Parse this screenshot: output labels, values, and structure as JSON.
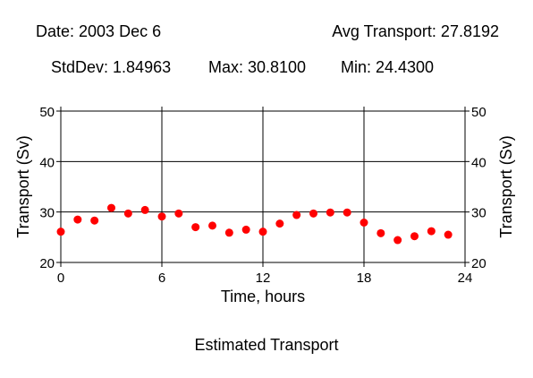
{
  "header": {
    "date": "Date: 2003 Dec 6",
    "avg": "Avg Transport: 27.8192",
    "stddev": "StdDev: 1.84963",
    "max": "Max: 30.8100",
    "min": "Min: 24.4300"
  },
  "caption": "Estimated Transport",
  "chart_data": {
    "type": "scatter",
    "xlabel": "Time, hours",
    "ylabel": "Transport (Sv)",
    "y2label": "Transport (Sv)",
    "xlim": [
      0,
      24
    ],
    "ylim": [
      20,
      50
    ],
    "xticks": [
      0,
      6,
      12,
      18,
      24
    ],
    "yticks": [
      20,
      30,
      40,
      50
    ],
    "grid": true,
    "marker_color": "#ff0000",
    "series": [
      {
        "x": [
          0,
          1,
          2,
          3,
          4,
          5,
          6,
          7,
          8,
          9,
          10,
          11,
          12,
          13,
          14,
          15,
          16,
          17,
          18,
          19,
          20,
          21,
          22,
          23
        ],
        "y": [
          26.1,
          28.5,
          28.3,
          30.81,
          29.7,
          30.4,
          29.1,
          29.7,
          27.0,
          27.3,
          25.9,
          26.5,
          26.1,
          27.7,
          29.4,
          29.7,
          29.9,
          29.9,
          27.9,
          25.8,
          24.43,
          25.2,
          26.2,
          25.5
        ]
      }
    ]
  }
}
